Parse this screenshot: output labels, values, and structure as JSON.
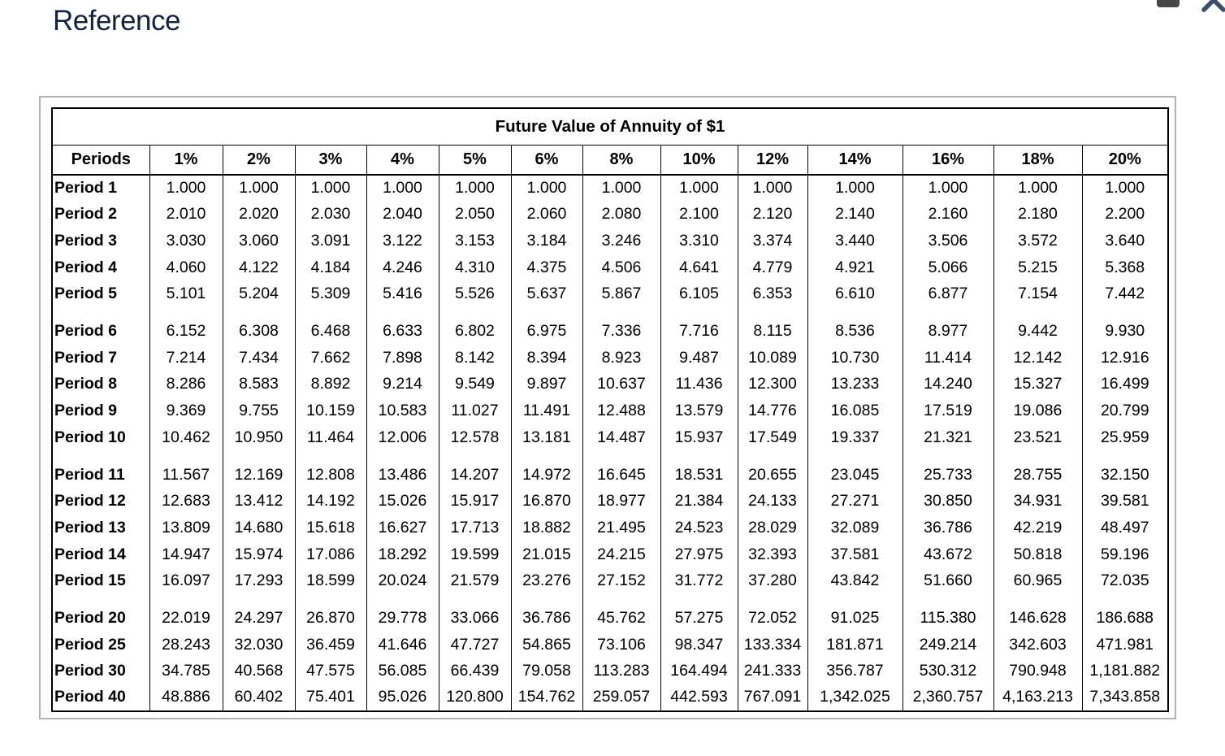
{
  "page": {
    "heading": "Reference"
  },
  "icons": {
    "minimize": "minimize-bar",
    "close": "x-close"
  },
  "colors": {
    "heading_text": "#15243b",
    "table_border": "#000000",
    "frame_border": "#b3b3b3",
    "close_icon": "#3e4e66",
    "minimize_icon": "#474747"
  },
  "table": {
    "title": "Future Value of Annuity of $1",
    "columns": [
      "Periods",
      "1%",
      "2%",
      "3%",
      "4%",
      "5%",
      "6%",
      "8%",
      "10%",
      "12%",
      "14%",
      "16%",
      "18%",
      "20%"
    ],
    "groups": [
      {
        "rows": [
          {
            "label": "Period 1",
            "values": [
              "1.000",
              "1.000",
              "1.000",
              "1.000",
              "1.000",
              "1.000",
              "1.000",
              "1.000",
              "1.000",
              "1.000",
              "1.000",
              "1.000",
              "1.000"
            ]
          },
          {
            "label": "Period 2",
            "values": [
              "2.010",
              "2.020",
              "2.030",
              "2.040",
              "2.050",
              "2.060",
              "2.080",
              "2.100",
              "2.120",
              "2.140",
              "2.160",
              "2.180",
              "2.200"
            ]
          },
          {
            "label": "Period 3",
            "values": [
              "3.030",
              "3.060",
              "3.091",
              "3.122",
              "3.153",
              "3.184",
              "3.246",
              "3.310",
              "3.374",
              "3.440",
              "3.506",
              "3.572",
              "3.640"
            ]
          },
          {
            "label": "Period 4",
            "values": [
              "4.060",
              "4.122",
              "4.184",
              "4.246",
              "4.310",
              "4.375",
              "4.506",
              "4.641",
              "4.779",
              "4.921",
              "5.066",
              "5.215",
              "5.368"
            ]
          },
          {
            "label": "Period 5",
            "values": [
              "5.101",
              "5.204",
              "5.309",
              "5.416",
              "5.526",
              "5.637",
              "5.867",
              "6.105",
              "6.353",
              "6.610",
              "6.877",
              "7.154",
              "7.442"
            ]
          }
        ]
      },
      {
        "rows": [
          {
            "label": "Period 6",
            "values": [
              "6.152",
              "6.308",
              "6.468",
              "6.633",
              "6.802",
              "6.975",
              "7.336",
              "7.716",
              "8.115",
              "8.536",
              "8.977",
              "9.442",
              "9.930"
            ]
          },
          {
            "label": "Period 7",
            "values": [
              "7.214",
              "7.434",
              "7.662",
              "7.898",
              "8.142",
              "8.394",
              "8.923",
              "9.487",
              "10.089",
              "10.730",
              "11.414",
              "12.142",
              "12.916"
            ]
          },
          {
            "label": "Period 8",
            "values": [
              "8.286",
              "8.583",
              "8.892",
              "9.214",
              "9.549",
              "9.897",
              "10.637",
              "11.436",
              "12.300",
              "13.233",
              "14.240",
              "15.327",
              "16.499"
            ]
          },
          {
            "label": "Period 9",
            "values": [
              "9.369",
              "9.755",
              "10.159",
              "10.583",
              "11.027",
              "11.491",
              "12.488",
              "13.579",
              "14.776",
              "16.085",
              "17.519",
              "19.086",
              "20.799"
            ]
          },
          {
            "label": "Period 10",
            "values": [
              "10.462",
              "10.950",
              "11.464",
              "12.006",
              "12.578",
              "13.181",
              "14.487",
              "15.937",
              "17.549",
              "19.337",
              "21.321",
              "23.521",
              "25.959"
            ]
          }
        ]
      },
      {
        "rows": [
          {
            "label": "Period 11",
            "values": [
              "11.567",
              "12.169",
              "12.808",
              "13.486",
              "14.207",
              "14.972",
              "16.645",
              "18.531",
              "20.655",
              "23.045",
              "25.733",
              "28.755",
              "32.150"
            ]
          },
          {
            "label": "Period 12",
            "values": [
              "12.683",
              "13.412",
              "14.192",
              "15.026",
              "15.917",
              "16.870",
              "18.977",
              "21.384",
              "24.133",
              "27.271",
              "30.850",
              "34.931",
              "39.581"
            ]
          },
          {
            "label": "Period 13",
            "values": [
              "13.809",
              "14.680",
              "15.618",
              "16.627",
              "17.713",
              "18.882",
              "21.495",
              "24.523",
              "28.029",
              "32.089",
              "36.786",
              "42.219",
              "48.497"
            ]
          },
          {
            "label": "Period 14",
            "values": [
              "14.947",
              "15.974",
              "17.086",
              "18.292",
              "19.599",
              "21.015",
              "24.215",
              "27.975",
              "32.393",
              "37.581",
              "43.672",
              "50.818",
              "59.196"
            ]
          },
          {
            "label": "Period 15",
            "values": [
              "16.097",
              "17.293",
              "18.599",
              "20.024",
              "21.579",
              "23.276",
              "27.152",
              "31.772",
              "37.280",
              "43.842",
              "51.660",
              "60.965",
              "72.035"
            ]
          }
        ]
      },
      {
        "rows": [
          {
            "label": "Period 20",
            "values": [
              "22.019",
              "24.297",
              "26.870",
              "29.778",
              "33.066",
              "36.786",
              "45.762",
              "57.275",
              "72.052",
              "91.025",
              "115.380",
              "146.628",
              "186.688"
            ]
          },
          {
            "label": "Period 25",
            "values": [
              "28.243",
              "32.030",
              "36.459",
              "41.646",
              "47.727",
              "54.865",
              "73.106",
              "98.347",
              "133.334",
              "181.871",
              "249.214",
              "342.603",
              "471.981"
            ]
          },
          {
            "label": "Period 30",
            "values": [
              "34.785",
              "40.568",
              "47.575",
              "56.085",
              "66.439",
              "79.058",
              "113.283",
              "164.494",
              "241.333",
              "356.787",
              "530.312",
              "790.948",
              "1,181.882"
            ]
          },
          {
            "label": "Period 40",
            "values": [
              "48.886",
              "60.402",
              "75.401",
              "95.026",
              "120.800",
              "154.762",
              "259.057",
              "442.593",
              "767.091",
              "1,342.025",
              "2,360.757",
              "4,163.213",
              "7,343.858"
            ]
          }
        ]
      }
    ]
  }
}
